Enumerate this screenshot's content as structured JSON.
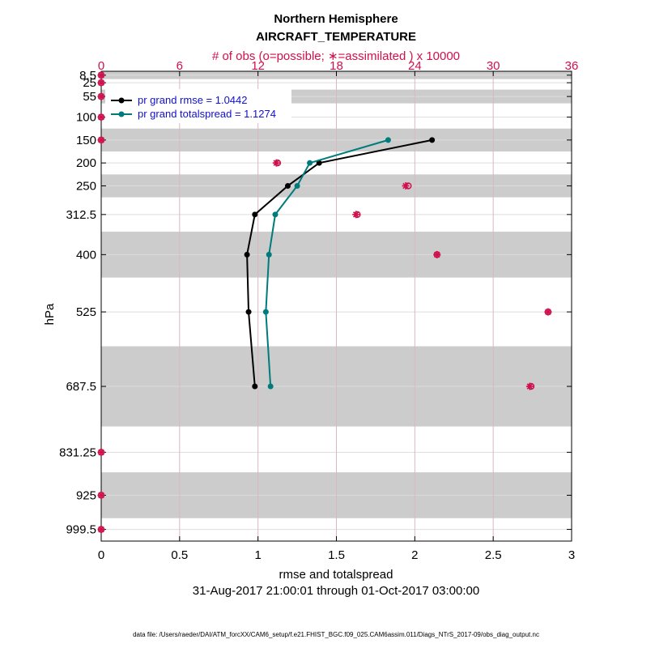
{
  "chart_data": {
    "type": "line",
    "title": "Northern Hemisphere",
    "subtitle": "AIRCRAFT_TEMPERATURE",
    "top_axis_label": "# of obs (o=possible; ∗=assimilated ) x 10000",
    "xlabel": "rmse and totalspread",
    "ylabel": "hPa",
    "date_range": "31-Aug-2017 21:00:01 through 01-Oct-2017 03:00:00",
    "footer": "data file: /Users/raeder/DAI/ATM_forcXX/CAM6_setup/f.e21.FHIST_BGC.f09_025.CAM6assim.011/Diags_NTrS_2017-09/obs_diag_output.nc",
    "xlim": [
      0,
      3
    ],
    "x_ticks": [
      "0",
      "0.5",
      "1",
      "1.5",
      "2",
      "2.5",
      "3"
    ],
    "top_xlim": [
      0,
      36
    ],
    "top_ticks": [
      "0",
      "6",
      "12",
      "18",
      "24",
      "30",
      "36"
    ],
    "y_ticks": [
      "8.5",
      "25",
      "55",
      "100",
      "150",
      "200",
      "250",
      "312.5",
      "400",
      "525",
      "687.5",
      "831.25",
      "925",
      "999.5"
    ],
    "levels": [
      8.5,
      25,
      55,
      100,
      150,
      200,
      250,
      312.5,
      400,
      525,
      687.5,
      831.25,
      925,
      999.5
    ],
    "grid": true,
    "legend_position": "top-left",
    "colors": {
      "rmse": "#000000",
      "spread": "#007b7b",
      "obs": "#d0104c",
      "band": "#cccccc",
      "grid": "#d9b8c4"
    },
    "series": [
      {
        "name": "pr grand rmse = 1.0442",
        "key": "rmse",
        "points": [
          {
            "level": 150,
            "x": 2.11
          },
          {
            "level": 200,
            "x": 1.39
          },
          {
            "level": 250,
            "x": 1.19
          },
          {
            "level": 312.5,
            "x": 0.98
          },
          {
            "level": 400,
            "x": 0.93
          },
          {
            "level": 525,
            "x": 0.94
          },
          {
            "level": 687.5,
            "x": 0.98
          }
        ]
      },
      {
        "name": "pr grand totalspread = 1.1274",
        "key": "spread",
        "points": [
          {
            "level": 150,
            "x": 1.83
          },
          {
            "level": 200,
            "x": 1.33
          },
          {
            "level": 250,
            "x": 1.25
          },
          {
            "level": 312.5,
            "x": 1.11
          },
          {
            "level": 400,
            "x": 1.07
          },
          {
            "level": 525,
            "x": 1.05
          },
          {
            "level": 687.5,
            "x": 1.08
          }
        ]
      }
    ],
    "obs_counts_x10000": [
      {
        "level": 8.5,
        "possible": 0,
        "assimilated": 0
      },
      {
        "level": 25,
        "possible": 0,
        "assimilated": 0
      },
      {
        "level": 55,
        "possible": 0,
        "assimilated": 0
      },
      {
        "level": 100,
        "possible": 0,
        "assimilated": 0
      },
      {
        "level": 150,
        "possible": 0,
        "assimilated": 0
      },
      {
        "level": 200,
        "possible": 13.5,
        "assimilated": 13.4
      },
      {
        "level": 250,
        "possible": 23.5,
        "assimilated": 23.3
      },
      {
        "level": 312.5,
        "possible": 19.6,
        "assimilated": 19.5
      },
      {
        "level": 400,
        "possible": 25.7,
        "assimilated": 25.7
      },
      {
        "level": 525,
        "possible": 34.2,
        "assimilated": 34.2
      },
      {
        "level": 687.5,
        "possible": 32.9,
        "assimilated": 32.8
      },
      {
        "level": 831.25,
        "possible": 0,
        "assimilated": 0
      },
      {
        "level": 925,
        "possible": 0,
        "assimilated": 0
      },
      {
        "level": 999.5,
        "possible": 0,
        "assimilated": 0
      }
    ],
    "shaded_bands_hPa": [
      [
        0,
        17
      ],
      [
        40,
        70
      ],
      [
        125,
        175
      ],
      [
        225,
        275
      ],
      [
        350,
        450
      ],
      [
        600,
        775
      ],
      [
        875,
        975
      ]
    ],
    "ylim": [
      0,
      1025
    ]
  }
}
